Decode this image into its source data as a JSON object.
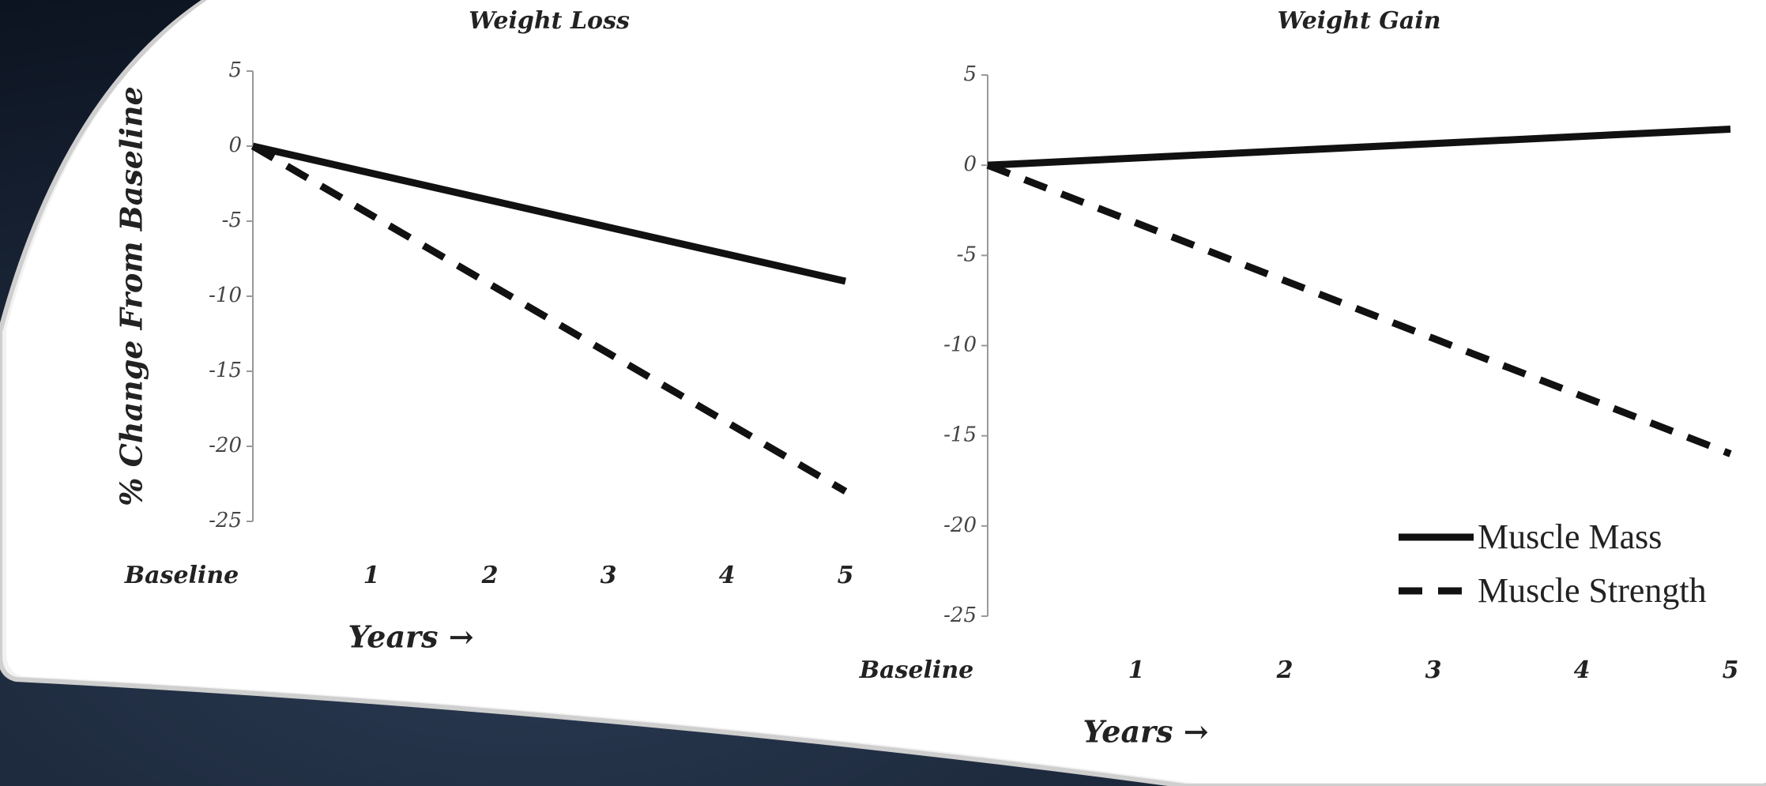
{
  "chart_data": [
    {
      "type": "line",
      "title": "Weight Loss",
      "y_label": "% Change From Baseline",
      "x_label": "Years →",
      "categories": [
        "Baseline",
        "1",
        "2",
        "3",
        "4",
        "5"
      ],
      "series": [
        {
          "name": "Muscle Mass",
          "color": "#111111",
          "dash": "solid",
          "values": [
            0,
            -1.8,
            -3.6,
            -5.4,
            -7.2,
            -9
          ]
        },
        {
          "name": "Muscle Strength",
          "color": "#111111",
          "dash": "dashed",
          "values": [
            0,
            -4.6,
            -9.2,
            -13.8,
            -18.4,
            -23
          ]
        }
      ],
      "ylim": [
        -25,
        5
      ],
      "yticks": [
        5,
        0,
        -5,
        -10,
        -15,
        -20,
        -25
      ],
      "legend": false
    },
    {
      "type": "line",
      "title": "Weight Gain",
      "x_label": "Years →",
      "categories": [
        "Baseline",
        "1",
        "2",
        "3",
        "4",
        "5"
      ],
      "series": [
        {
          "name": "Muscle Mass",
          "color": "#111111",
          "dash": "solid",
          "values": [
            0,
            0.4,
            0.8,
            1.2,
            1.6,
            2
          ]
        },
        {
          "name": "Muscle Strength",
          "color": "#111111",
          "dash": "dashed",
          "values": [
            0,
            -3.2,
            -6.4,
            -9.6,
            -12.8,
            -16
          ]
        }
      ],
      "ylim": [
        -25,
        5
      ],
      "yticks": [
        5,
        0,
        -5,
        -10,
        -15,
        -20,
        -25
      ],
      "legend": "lower right"
    }
  ]
}
